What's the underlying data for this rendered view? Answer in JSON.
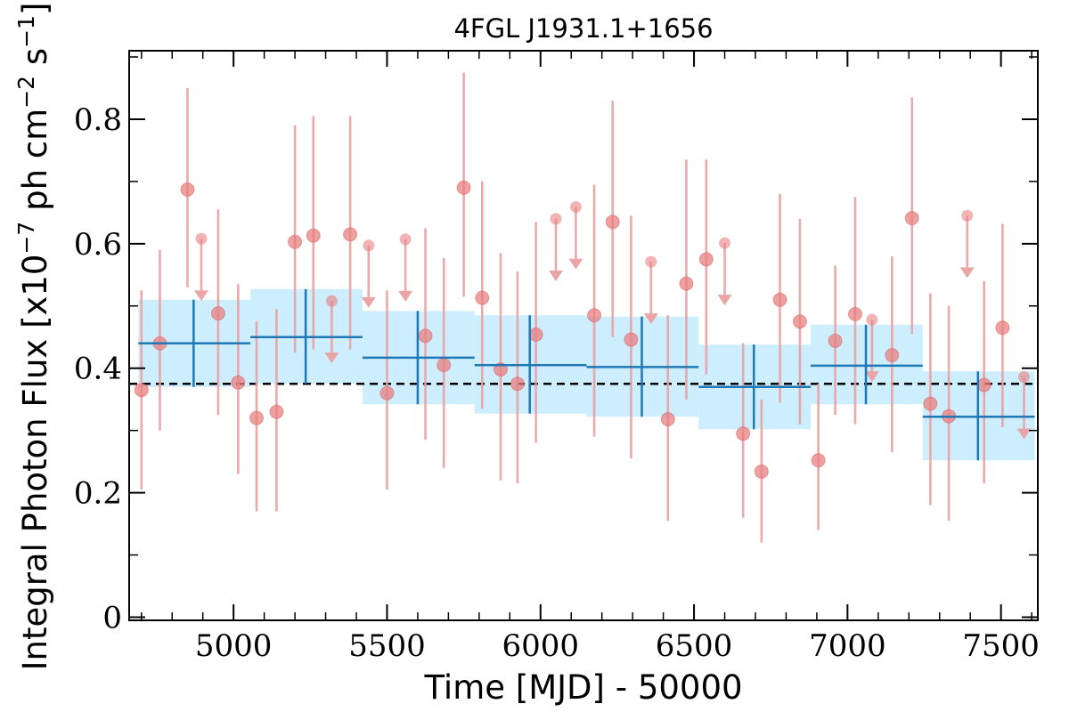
{
  "chart_data": {
    "type": "scatter",
    "title": "4FGL J1931.1+1656",
    "xlabel": "Time [MJD] - 50000",
    "ylabel": "Integral Photon Flux [x10",
    "ylabel_exponent": "−7",
    "ylabel_unit": " ph cm",
    "ylabel_unit_exp": "−2",
    "ylabel_unit2": " s",
    "ylabel_unit2_exp": "−1",
    "ylabel_close": "]",
    "xlim": [
      4660,
      7620
    ],
    "ylim": [
      -0.005,
      0.91
    ],
    "x_ticks": [
      5000,
      5500,
      6000,
      6500,
      7000,
      7500
    ],
    "x_tick_labels": [
      "5000",
      "5500",
      "6000",
      "6500",
      "7000",
      "7500"
    ],
    "y_ticks": [
      0.0,
      0.2,
      0.4,
      0.6,
      0.8
    ],
    "y_tick_labels": [
      "0",
      "0.2",
      "0.4",
      "0.6",
      "0.8"
    ],
    "grid": false,
    "mean_flux": 0.375,
    "colors": {
      "points": "#e88080",
      "errorbars": "#eaa0a0",
      "bins": "#1f77b4",
      "bands": "#cdeeff",
      "mean_line": "#000000"
    },
    "flux_points": [
      {
        "x": 4700,
        "y": 0.365,
        "lo": 0.205,
        "hi": 0.525
      },
      {
        "x": 4760,
        "y": 0.44,
        "lo": 0.3,
        "hi": 0.59
      },
      {
        "x": 4850,
        "y": 0.687,
        "lo": 0.53,
        "hi": 0.85
      },
      {
        "x": 4950,
        "y": 0.488,
        "lo": 0.325,
        "hi": 0.655
      },
      {
        "x": 5015,
        "y": 0.377,
        "lo": 0.23,
        "hi": 0.535
      },
      {
        "x": 5075,
        "y": 0.32,
        "lo": 0.17,
        "hi": 0.475
      },
      {
        "x": 5140,
        "y": 0.33,
        "lo": 0.17,
        "hi": 0.495
      },
      {
        "x": 5200,
        "y": 0.603,
        "lo": 0.425,
        "hi": 0.79
      },
      {
        "x": 5260,
        "y": 0.613,
        "lo": 0.43,
        "hi": 0.805
      },
      {
        "x": 5380,
        "y": 0.615,
        "lo": 0.43,
        "hi": 0.805
      },
      {
        "x": 5500,
        "y": 0.36,
        "lo": 0.205,
        "hi": 0.525
      },
      {
        "x": 5625,
        "y": 0.452,
        "lo": 0.285,
        "hi": 0.625
      },
      {
        "x": 5685,
        "y": 0.405,
        "lo": 0.24,
        "hi": 0.577
      },
      {
        "x": 5750,
        "y": 0.69,
        "lo": 0.515,
        "hi": 0.875
      },
      {
        "x": 5810,
        "y": 0.513,
        "lo": 0.335,
        "hi": 0.7
      },
      {
        "x": 5870,
        "y": 0.398,
        "lo": 0.22,
        "hi": 0.585
      },
      {
        "x": 5925,
        "y": 0.375,
        "lo": 0.215,
        "hi": 0.555
      },
      {
        "x": 5985,
        "y": 0.454,
        "lo": 0.28,
        "hi": 0.635
      },
      {
        "x": 6175,
        "y": 0.485,
        "lo": 0.29,
        "hi": 0.695
      },
      {
        "x": 6235,
        "y": 0.635,
        "lo": 0.45,
        "hi": 0.83
      },
      {
        "x": 6295,
        "y": 0.446,
        "lo": 0.255,
        "hi": 0.645
      },
      {
        "x": 6415,
        "y": 0.318,
        "lo": 0.155,
        "hi": 0.485
      },
      {
        "x": 6475,
        "y": 0.536,
        "lo": 0.35,
        "hi": 0.735
      },
      {
        "x": 6540,
        "y": 0.575,
        "lo": 0.39,
        "hi": 0.735
      },
      {
        "x": 6660,
        "y": 0.295,
        "lo": 0.16,
        "hi": 0.44
      },
      {
        "x": 6720,
        "y": 0.234,
        "lo": 0.12,
        "hi": 0.35
      },
      {
        "x": 6780,
        "y": 0.51,
        "lo": 0.345,
        "hi": 0.68
      },
      {
        "x": 6845,
        "y": 0.475,
        "lo": 0.31,
        "hi": 0.64
      },
      {
        "x": 6905,
        "y": 0.252,
        "lo": 0.14,
        "hi": 0.375
      },
      {
        "x": 6960,
        "y": 0.444,
        "lo": 0.325,
        "hi": 0.565
      },
      {
        "x": 7025,
        "y": 0.487,
        "lo": 0.31,
        "hi": 0.675
      },
      {
        "x": 7145,
        "y": 0.421,
        "lo": 0.265,
        "hi": 0.58
      },
      {
        "x": 7210,
        "y": 0.641,
        "lo": 0.455,
        "hi": 0.835
      },
      {
        "x": 7270,
        "y": 0.343,
        "lo": 0.18,
        "hi": 0.52
      },
      {
        "x": 7330,
        "y": 0.323,
        "lo": 0.155,
        "hi": 0.5
      },
      {
        "x": 7445,
        "y": 0.373,
        "lo": 0.215,
        "hi": 0.54
      },
      {
        "x": 7505,
        "y": 0.465,
        "lo": 0.305,
        "hi": 0.632
      }
    ],
    "upper_limits": [
      {
        "x": 4895,
        "y": 0.608
      },
      {
        "x": 5320,
        "y": 0.508
      },
      {
        "x": 5440,
        "y": 0.597
      },
      {
        "x": 5560,
        "y": 0.607
      },
      {
        "x": 6050,
        "y": 0.64
      },
      {
        "x": 6115,
        "y": 0.659
      },
      {
        "x": 6360,
        "y": 0.571
      },
      {
        "x": 6600,
        "y": 0.601
      },
      {
        "x": 7080,
        "y": 0.478
      },
      {
        "x": 7390,
        "y": 0.645
      },
      {
        "x": 7575,
        "y": 0.386
      }
    ],
    "bins": [
      {
        "x0": 4690,
        "x1": 5055,
        "xc": 4870,
        "y": 0.44,
        "lo": 0.37,
        "hi": 0.51
      },
      {
        "x0": 5055,
        "x1": 5420,
        "xc": 5235,
        "y": 0.45,
        "lo": 0.375,
        "hi": 0.527
      },
      {
        "x0": 5420,
        "x1": 5785,
        "xc": 5600,
        "y": 0.417,
        "lo": 0.342,
        "hi": 0.492
      },
      {
        "x0": 5785,
        "x1": 6150,
        "xc": 5965,
        "y": 0.405,
        "lo": 0.327,
        "hi": 0.485
      },
      {
        "x0": 6150,
        "x1": 6515,
        "xc": 6330,
        "y": 0.402,
        "lo": 0.322,
        "hi": 0.483
      },
      {
        "x0": 6515,
        "x1": 6880,
        "xc": 6695,
        "y": 0.37,
        "lo": 0.302,
        "hi": 0.438
      },
      {
        "x0": 6880,
        "x1": 7245,
        "xc": 7060,
        "y": 0.404,
        "lo": 0.342,
        "hi": 0.47
      },
      {
        "x0": 7245,
        "x1": 7610,
        "xc": 7425,
        "y": 0.322,
        "lo": 0.252,
        "hi": 0.395
      }
    ]
  }
}
